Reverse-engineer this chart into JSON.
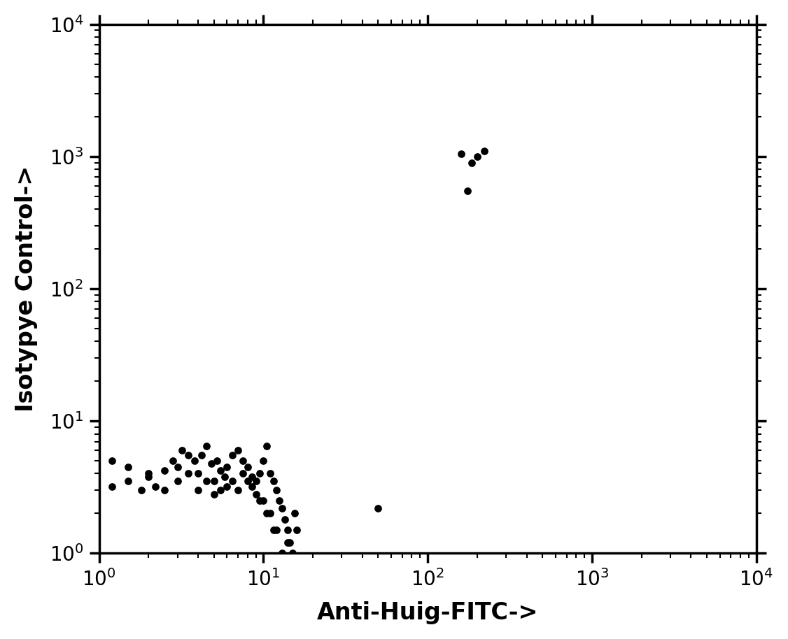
{
  "xlabel": "Anti-Huig-FITC->",
  "ylabel": "Isotypye Control->",
  "xlim": [
    1,
    10000
  ],
  "ylim": [
    1,
    10000
  ],
  "background_color": "#ffffff",
  "xlabel_fontsize": 24,
  "ylabel_fontsize": 24,
  "tick_fontsize": 20,
  "marker_color": "#000000",
  "scatter_points": [
    [
      1.2,
      3.2
    ],
    [
      1.5,
      3.5
    ],
    [
      1.8,
      3.0
    ],
    [
      2.0,
      3.8
    ],
    [
      2.2,
      3.2
    ],
    [
      2.5,
      4.2
    ],
    [
      2.8,
      5.0
    ],
    [
      3.0,
      4.5
    ],
    [
      3.2,
      6.0
    ],
    [
      3.5,
      5.5
    ],
    [
      3.8,
      5.0
    ],
    [
      4.0,
      4.0
    ],
    [
      4.2,
      5.5
    ],
    [
      4.5,
      6.5
    ],
    [
      4.8,
      4.8
    ],
    [
      5.0,
      3.5
    ],
    [
      5.2,
      5.0
    ],
    [
      5.5,
      4.2
    ],
    [
      5.8,
      3.8
    ],
    [
      6.0,
      4.5
    ],
    [
      6.5,
      5.5
    ],
    [
      7.0,
      6.0
    ],
    [
      7.5,
      5.0
    ],
    [
      8.0,
      4.5
    ],
    [
      8.5,
      3.8
    ],
    [
      9.0,
      3.5
    ],
    [
      9.5,
      4.0
    ],
    [
      10.0,
      5.0
    ],
    [
      10.5,
      6.5
    ],
    [
      11.0,
      4.0
    ],
    [
      11.5,
      3.5
    ],
    [
      12.0,
      3.0
    ],
    [
      12.5,
      2.5
    ],
    [
      13.0,
      2.2
    ],
    [
      13.5,
      1.8
    ],
    [
      14.0,
      1.5
    ],
    [
      14.5,
      1.2
    ],
    [
      15.0,
      1.0
    ],
    [
      15.5,
      2.0
    ],
    [
      16.0,
      1.5
    ],
    [
      10.0,
      2.5
    ],
    [
      11.0,
      2.0
    ],
    [
      12.0,
      1.5
    ],
    [
      13.0,
      1.0
    ],
    [
      14.0,
      1.2
    ],
    [
      7.0,
      3.0
    ],
    [
      8.0,
      3.5
    ],
    [
      9.0,
      2.8
    ],
    [
      6.0,
      3.2
    ],
    [
      5.0,
      2.8
    ],
    [
      4.0,
      3.0
    ],
    [
      3.0,
      3.5
    ],
    [
      2.0,
      4.0
    ],
    [
      1.5,
      4.5
    ],
    [
      1.2,
      5.0
    ],
    [
      2.5,
      3.0
    ],
    [
      3.5,
      4.0
    ],
    [
      4.5,
      3.5
    ],
    [
      5.5,
      3.0
    ],
    [
      6.5,
      3.5
    ],
    [
      7.5,
      4.0
    ],
    [
      8.5,
      3.2
    ],
    [
      9.5,
      2.5
    ],
    [
      10.5,
      2.0
    ],
    [
      11.5,
      1.5
    ],
    [
      50.0,
      2.2
    ],
    [
      160.0,
      1050.0
    ],
    [
      200.0,
      1000.0
    ],
    [
      185.0,
      900.0
    ],
    [
      220.0,
      1100.0
    ],
    [
      175.0,
      550.0
    ]
  ]
}
